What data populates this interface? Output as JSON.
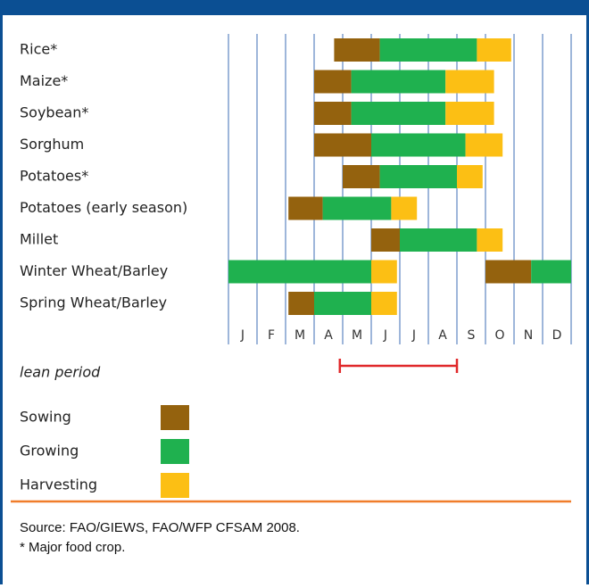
{
  "chart_data": {
    "type": "gantt",
    "categories": [
      "Rice*",
      "Maize*",
      "Soybean*",
      "Sorghum",
      "Potatoes*",
      "Potatoes (early season)",
      "Millet",
      "Winter Wheat/Barley",
      "Spring Wheat/Barley"
    ],
    "months": [
      "J",
      "F",
      "M",
      "A",
      "M",
      "J",
      "J",
      "A",
      "S",
      "O",
      "N",
      "D"
    ],
    "xlim": [
      0,
      12
    ],
    "series": [
      {
        "name": "Sowing",
        "color": "#94620e",
        "values": [
          [
            [
              3.7,
              5.3
            ]
          ],
          [
            [
              3.0,
              4.3
            ]
          ],
          [
            [
              3.0,
              4.3
            ]
          ],
          [
            [
              3.0,
              5.0
            ]
          ],
          [
            [
              4.0,
              5.3
            ]
          ],
          [
            [
              2.1,
              3.3
            ]
          ],
          [
            [
              5.0,
              6.0
            ]
          ],
          [
            [
              9.0,
              10.6
            ]
          ],
          [
            [
              2.1,
              3.0
            ]
          ]
        ]
      },
      {
        "name": "Growing",
        "color": "#1fb14f",
        "values": [
          [
            [
              5.3,
              8.7
            ]
          ],
          [
            [
              4.3,
              7.6
            ]
          ],
          [
            [
              4.3,
              7.6
            ]
          ],
          [
            [
              5.0,
              8.3
            ]
          ],
          [
            [
              5.3,
              8.0
            ]
          ],
          [
            [
              3.3,
              5.7
            ]
          ],
          [
            [
              6.0,
              8.7
            ]
          ],
          [
            [
              0,
              5.0
            ],
            [
              10.6,
              12
            ]
          ],
          [
            [
              3.0,
              5.0
            ]
          ]
        ]
      },
      {
        "name": "Harvesting",
        "color": "#fcbf14",
        "values": [
          [
            [
              8.7,
              9.9
            ]
          ],
          [
            [
              7.6,
              9.3
            ]
          ],
          [
            [
              7.6,
              9.3
            ]
          ],
          [
            [
              8.3,
              9.6
            ]
          ],
          [
            [
              8.0,
              8.9
            ]
          ],
          [
            [
              5.7,
              6.6
            ]
          ],
          [
            [
              8.7,
              9.6
            ]
          ],
          [
            [
              5.0,
              5.9
            ]
          ],
          [
            [
              5.0,
              5.9
            ]
          ]
        ]
      }
    ],
    "annotation": {
      "text": "lean period",
      "range": [
        3.9,
        8.0
      ],
      "color": "#e0282a"
    },
    "source": "Source: FAO/GIEWS, FAO/WFP CFSAM 2008.",
    "note": "* Major food crop."
  }
}
